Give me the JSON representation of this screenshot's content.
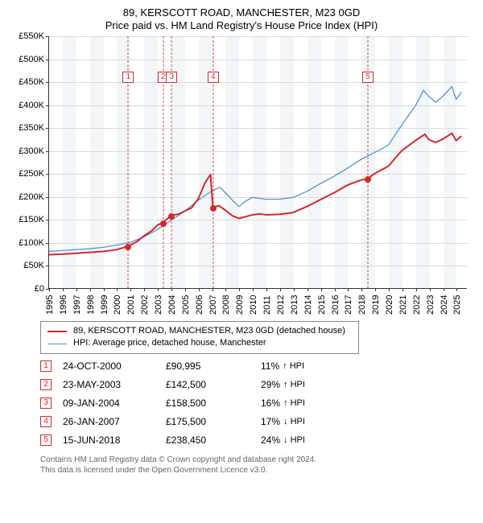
{
  "title": "89, KERSCOTT ROAD, MANCHESTER, M23 0GD",
  "subtitle": "Price paid vs. HM Land Registry's House Price Index (HPI)",
  "chart": {
    "type": "line",
    "background_color": "#ffffff",
    "alt_band_color": "#f3f6f9",
    "grid_color": "#d9d9d9",
    "x_start": 1995,
    "x_end": 2025.8,
    "xticks": [
      1995,
      1996,
      1997,
      1998,
      1999,
      2000,
      2001,
      2002,
      2003,
      2004,
      2005,
      2006,
      2007,
      2008,
      2009,
      2010,
      2011,
      2012,
      2013,
      2014,
      2015,
      2016,
      2017,
      2018,
      2019,
      2020,
      2021,
      2022,
      2023,
      2024,
      2025
    ],
    "ylim": [
      0,
      550000
    ],
    "ytick_step": 50000,
    "yticks": [
      "£0",
      "£50K",
      "£100K",
      "£150K",
      "£200K",
      "£250K",
      "£300K",
      "£350K",
      "£400K",
      "£450K",
      "£500K",
      "£550K"
    ],
    "label_fontsize": 11,
    "series": [
      {
        "name": "89, KERSCOTT ROAD, MANCHESTER, M23 0GD (detached house)",
        "color": "#d62728",
        "line_width": 2,
        "data": [
          [
            1995,
            73000
          ],
          [
            1996,
            74000
          ],
          [
            1997,
            76000
          ],
          [
            1998,
            78000
          ],
          [
            1999,
            80000
          ],
          [
            2000,
            84000
          ],
          [
            2000.82,
            90995
          ],
          [
            2001.5,
            102000
          ],
          [
            2002,
            114000
          ],
          [
            2002.6,
            126000
          ],
          [
            2003,
            138000
          ],
          [
            2003.39,
            142500
          ],
          [
            2003.7,
            151000
          ],
          [
            2004.02,
            158500
          ],
          [
            2004.6,
            162000
          ],
          [
            2005,
            168000
          ],
          [
            2005.5,
            175000
          ],
          [
            2006,
            195000
          ],
          [
            2006.5,
            230000
          ],
          [
            2006.9,
            248000
          ],
          [
            2007.07,
            175500
          ],
          [
            2007.5,
            180000
          ],
          [
            2008,
            170000
          ],
          [
            2008.5,
            158000
          ],
          [
            2009,
            152000
          ],
          [
            2009.5,
            156000
          ],
          [
            2010,
            160000
          ],
          [
            2010.5,
            162000
          ],
          [
            2011,
            160000
          ],
          [
            2012,
            161000
          ],
          [
            2013,
            165000
          ],
          [
            2014,
            178000
          ],
          [
            2015,
            193000
          ],
          [
            2016,
            208000
          ],
          [
            2017,
            225000
          ],
          [
            2018,
            236000
          ],
          [
            2018.46,
            238450
          ],
          [
            2019,
            250000
          ],
          [
            2020,
            266000
          ],
          [
            2021,
            300000
          ],
          [
            2022,
            322000
          ],
          [
            2022.7,
            336000
          ],
          [
            2023,
            324000
          ],
          [
            2023.5,
            318000
          ],
          [
            2024,
            325000
          ],
          [
            2024.7,
            338000
          ],
          [
            2025,
            322000
          ],
          [
            2025.4,
            332000
          ]
        ]
      },
      {
        "name": "HPI: Average price, detached house, Manchester",
        "color": "#5a8fd6",
        "line_width": 1.3,
        "data": [
          [
            1995,
            80000
          ],
          [
            1996,
            82000
          ],
          [
            1997,
            84000
          ],
          [
            1998,
            86000
          ],
          [
            1999,
            89000
          ],
          [
            2000,
            94000
          ],
          [
            2001,
            100000
          ],
          [
            2002,
            112000
          ],
          [
            2003,
            128000
          ],
          [
            2004,
            148000
          ],
          [
            2005,
            168000
          ],
          [
            2006,
            192000
          ],
          [
            2007,
            212000
          ],
          [
            2007.6,
            220000
          ],
          [
            2008,
            208000
          ],
          [
            2008.7,
            186000
          ],
          [
            2009,
            178000
          ],
          [
            2009.5,
            190000
          ],
          [
            2010,
            198000
          ],
          [
            2011,
            194000
          ],
          [
            2012,
            194000
          ],
          [
            2013,
            198000
          ],
          [
            2014,
            211000
          ],
          [
            2015,
            228000
          ],
          [
            2016,
            244000
          ],
          [
            2017,
            262000
          ],
          [
            2018,
            281000
          ],
          [
            2019,
            296000
          ],
          [
            2020,
            312000
          ],
          [
            2021,
            356000
          ],
          [
            2022,
            398000
          ],
          [
            2022.6,
            432000
          ],
          [
            2023,
            418000
          ],
          [
            2023.5,
            406000
          ],
          [
            2024,
            418000
          ],
          [
            2024.7,
            440000
          ],
          [
            2025,
            412000
          ],
          [
            2025.4,
            428000
          ]
        ]
      }
    ],
    "transactions": [
      {
        "n": 1,
        "date": "24-OCT-2000",
        "x": 2000.82,
        "price": 90995,
        "price_label": "£90,995",
        "delta_pct": "11%",
        "dir": "up",
        "dir_label": "↑ HPI"
      },
      {
        "n": 2,
        "date": "23-MAY-2003",
        "x": 2003.39,
        "price": 142500,
        "price_label": "£142,500",
        "delta_pct": "29%",
        "dir": "up",
        "dir_label": "↑ HPI"
      },
      {
        "n": 3,
        "date": "09-JAN-2004",
        "x": 2004.02,
        "price": 158500,
        "price_label": "£158,500",
        "delta_pct": "16%",
        "dir": "up",
        "dir_label": "↑ HPI"
      },
      {
        "n": 4,
        "date": "26-JAN-2007",
        "x": 2007.07,
        "price": 175500,
        "price_label": "£175,500",
        "delta_pct": "17%",
        "dir": "down",
        "dir_label": "↓ HPI"
      },
      {
        "n": 5,
        "date": "15-JUN-2018",
        "x": 2018.46,
        "price": 238450,
        "price_label": "£238,450",
        "delta_pct": "24%",
        "dir": "down",
        "dir_label": "↓ HPI"
      }
    ],
    "marker_border_color": "#d62728",
    "marker_vline_color": "#d64a4a",
    "point_fill": "#d62728",
    "marker_y_top": 44
  },
  "legend": {
    "border_color": "#888888",
    "fontsize": 11
  },
  "attribution": {
    "line1": "Contains HM Land Registry data © Crown copyright and database right 2024.",
    "line2": "This data is licensed under the Open Government Licence v3.0."
  }
}
